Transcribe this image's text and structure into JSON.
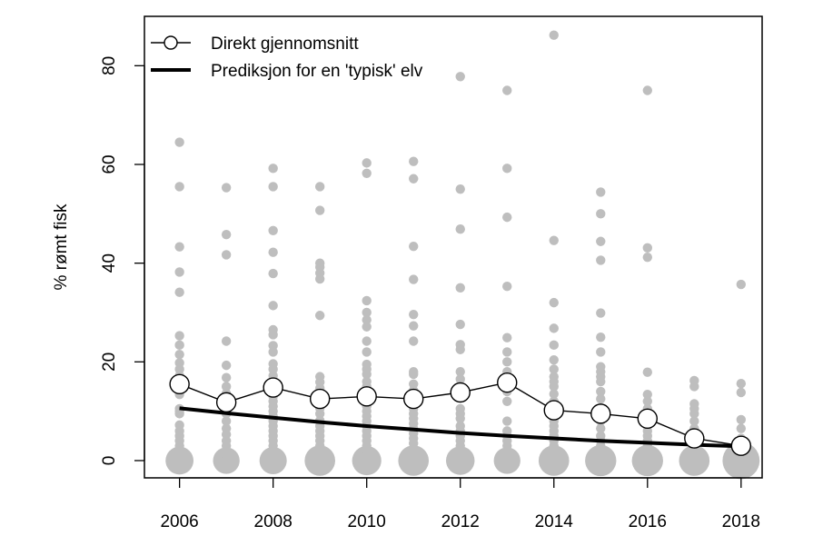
{
  "chart_data": {
    "type": "scatter",
    "title": "",
    "xlabel": "",
    "ylabel": "% rømt fisk",
    "xlim": [
      2005.25,
      2018.45
    ],
    "ylim": [
      -3.5,
      90
    ],
    "grid": false,
    "legend": {
      "position": "top-left",
      "entries": [
        "Direkt gjennomsnitt",
        "Prediksjon for en 'typisk' elv"
      ]
    },
    "x_ticks": [
      2006,
      2008,
      2010,
      2012,
      2014,
      2016,
      2018
    ],
    "y_ticks": [
      0,
      20,
      40,
      60,
      80
    ],
    "colors": {
      "points": "#bebebe",
      "lines": "#000000",
      "circle_fill": "#ffffff"
    },
    "series": [
      {
        "name": "Direkt gjennomsnitt",
        "style": "line-with-open-circles",
        "x": [
          2006,
          2007,
          2008,
          2009,
          2010,
          2011,
          2012,
          2013,
          2014,
          2015,
          2016,
          2017,
          2018
        ],
        "y": [
          15.5,
          11.8,
          14.8,
          12.5,
          13.0,
          12.5,
          13.8,
          15.8,
          10.2,
          9.5,
          8.5,
          4.5,
          3.0
        ]
      },
      {
        "name": "Prediksjon for en 'typisk' elv",
        "style": "thick-line",
        "x": [
          2006,
          2007,
          2008,
          2009,
          2010,
          2011,
          2012,
          2013,
          2014,
          2015,
          2016,
          2017,
          2018
        ],
        "y": [
          10.6,
          9.6,
          8.7,
          7.8,
          7.0,
          6.3,
          5.6,
          5.0,
          4.5,
          4.0,
          3.6,
          3.2,
          2.9
        ]
      }
    ],
    "river_points": {
      "description_marker": "grey filled circles, size proportional to number of rivers",
      "by_year": [
        {
          "year": 2006,
          "values": [
            64.5,
            55.5,
            43.3,
            38.2,
            34.1,
            25.3,
            23.4,
            21.5,
            19.8,
            18.5,
            17.2,
            13.4,
            10.5,
            10.0,
            9.5,
            7.2,
            6.0,
            5.0,
            4.0,
            3.0,
            2.0,
            1.5,
            1.0
          ],
          "zero_size": 2.6
        },
        {
          "year": 2007,
          "values": [
            55.3,
            45.8,
            41.7,
            24.2,
            19.3,
            16.8,
            15.0,
            13.6,
            12.5,
            9.5,
            8.0,
            6.5,
            5.3,
            4.0,
            3.0,
            2.0,
            1.0
          ],
          "zero_size": 2.4
        },
        {
          "year": 2008,
          "values": [
            59.2,
            55.5,
            46.6,
            42.2,
            37.9,
            31.4,
            26.5,
            25.5,
            23.3,
            22.0,
            19.6,
            18.5,
            17.2,
            15.5,
            14.5,
            13.0,
            12.0,
            11.0,
            10.0,
            9.0,
            8.0,
            7.0,
            6.0,
            5.0,
            4.0,
            3.0,
            2.0,
            1.0
          ],
          "zero_size": 2.5
        },
        {
          "year": 2009,
          "values": [
            55.5,
            50.7,
            40.0,
            39.2,
            38.0,
            36.8,
            29.4,
            17.0,
            15.9,
            14.7,
            13.5,
            12.0,
            10.6,
            9.5,
            8.1,
            7.0,
            6.0,
            5.0,
            4.0,
            3.0,
            2.0,
            1.0
          ],
          "zero_size": 3.0
        },
        {
          "year": 2010,
          "values": [
            60.3,
            58.2,
            32.4,
            30.0,
            28.5,
            27.1,
            24.2,
            22.0,
            19.5,
            18.5,
            17.5,
            16.0,
            15.0,
            12.0,
            11.0,
            10.0,
            9.0,
            8.0,
            7.0,
            6.0,
            5.0,
            4.0,
            3.0,
            2.0,
            1.0
          ],
          "zero_size": 2.8
        },
        {
          "year": 2011,
          "values": [
            60.6,
            57.1,
            43.4,
            36.7,
            29.6,
            27.3,
            24.2,
            18.0,
            17.5,
            15.5,
            14.2,
            10.5,
            9.5,
            8.5,
            7.5,
            6.5,
            5.5,
            4.5,
            3.5,
            2.5,
            1.5
          ],
          "zero_size": 3.0
        },
        {
          "year": 2012,
          "values": [
            77.8,
            55.0,
            46.9,
            35.0,
            27.6,
            23.5,
            22.5,
            18.0,
            16.5,
            15.0,
            10.5,
            9.5,
            8.5,
            7.0,
            6.0,
            5.0,
            4.0,
            3.0,
            2.0,
            1.0
          ],
          "zero_size": 2.7
        },
        {
          "year": 2013,
          "values": [
            75.0,
            59.2,
            49.3,
            35.3,
            24.9,
            22.0,
            20.0,
            18.0,
            17.0,
            16.0,
            14.0,
            12.0,
            8.0,
            6.0,
            5.0,
            4.0,
            3.0,
            2.0,
            1.0
          ],
          "zero_size": 2.4
        },
        {
          "year": 2014,
          "values": [
            86.2,
            44.6,
            32.0,
            26.8,
            23.4,
            20.4,
            18.5,
            17.0,
            16.0,
            15.0,
            13.5,
            12.0,
            9.0,
            8.0,
            7.0,
            6.0,
            5.0,
            4.0,
            3.0,
            2.0,
            1.0
          ],
          "zero_size": 3.0
        },
        {
          "year": 2015,
          "values": [
            54.4,
            50.0,
            44.4,
            40.6,
            29.9,
            25.0,
            22.0,
            19.0,
            18.0,
            17.0,
            16.0,
            14.0,
            12.5,
            8.0,
            6.5,
            5.0,
            4.0,
            3.0,
            2.0,
            1.0
          ],
          "zero_size": 3.1
        },
        {
          "year": 2016,
          "values": [
            75.0,
            43.1,
            41.2,
            17.9,
            13.4,
            12.0,
            10.5,
            9.5,
            8.0,
            7.0,
            6.0,
            5.0,
            4.0,
            3.0,
            2.0,
            1.0
          ],
          "zero_size": 3.1
        },
        {
          "year": 2017,
          "values": [
            16.2,
            15.0,
            11.5,
            10.5,
            9.5,
            8.0,
            6.5,
            5.5,
            4.5,
            3.5,
            2.5,
            1.5
          ],
          "zero_size": 3.0
        },
        {
          "year": 2018,
          "values": [
            35.7,
            15.6,
            13.8,
            8.3,
            6.5,
            4.5,
            3.5,
            2.0,
            1.0
          ],
          "zero_size": 4.0
        }
      ]
    }
  }
}
